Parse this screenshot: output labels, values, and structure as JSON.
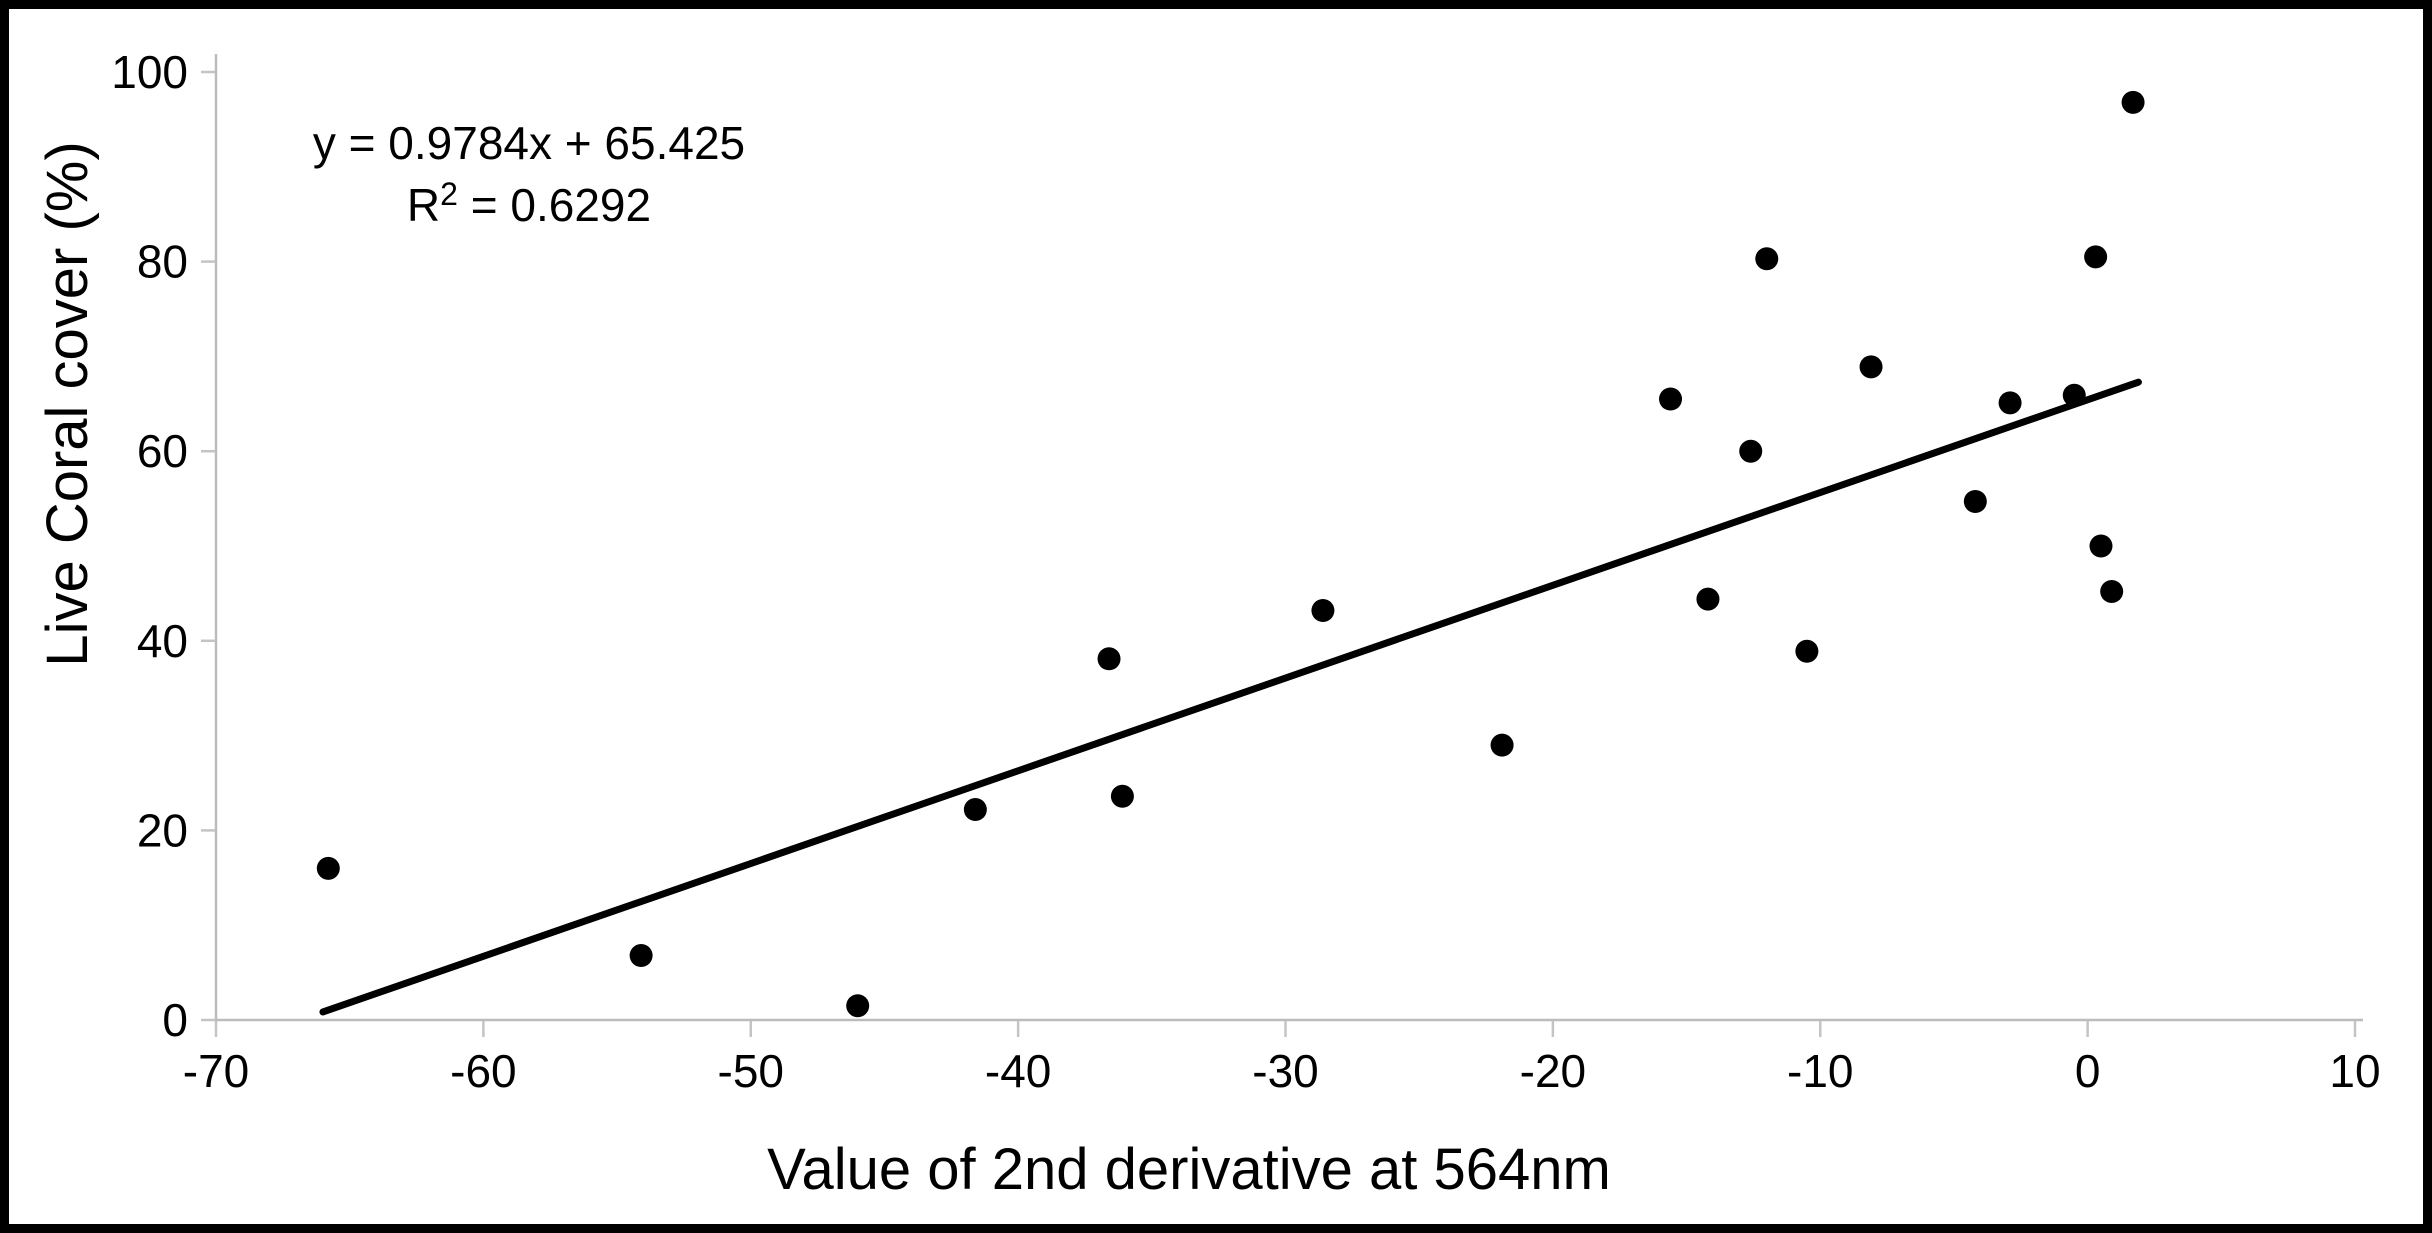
{
  "chart_data": {
    "type": "scatter",
    "title": "",
    "xlabel": "Value of 2nd derivative at 564nm",
    "ylabel": "Live Coral cover (%)",
    "xlim": [
      -70,
      10
    ],
    "ylim": [
      0,
      100
    ],
    "x_ticks": [
      -70,
      -60,
      -50,
      -40,
      -30,
      -20,
      -10,
      0,
      10
    ],
    "y_ticks": [
      0,
      20,
      40,
      60,
      80,
      100
    ],
    "grid": false,
    "legend_position": "none",
    "points": [
      [
        -65.8,
        16.0
      ],
      [
        -54.1,
        6.8
      ],
      [
        -46.0,
        1.5
      ],
      [
        -41.6,
        22.2
      ],
      [
        -36.6,
        38.1
      ],
      [
        -36.1,
        23.6
      ],
      [
        -28.6,
        43.2
      ],
      [
        -21.9,
        29.0
      ],
      [
        -15.6,
        65.5
      ],
      [
        -14.2,
        44.4
      ],
      [
        -12.6,
        60.0
      ],
      [
        -12.0,
        80.3
      ],
      [
        -10.5,
        38.9
      ],
      [
        -8.1,
        68.9
      ],
      [
        -4.2,
        54.7
      ],
      [
        -2.9,
        65.1
      ],
      [
        -0.5,
        65.9
      ],
      [
        0.3,
        80.5
      ],
      [
        0.5,
        50.0
      ],
      [
        0.9,
        45.2
      ],
      [
        1.7,
        96.8
      ]
    ],
    "trendline": {
      "slope": 0.9784,
      "intercept": 65.425,
      "x_start": -66.0,
      "x_end": 1.9
    },
    "annotation": {
      "equation_line": "y = 0.9784x + 65.425",
      "r2_base": "R",
      "r2_superscript": "2",
      "r2_rest": " = 0.6292"
    },
    "colors": {
      "point": "#000000",
      "trendline": "#000000",
      "axis_line": "#bcbcbc",
      "tick_mark": "#c4c4c4",
      "text": "#000000",
      "background": "#ffffff",
      "frame_border": "#000000"
    }
  }
}
